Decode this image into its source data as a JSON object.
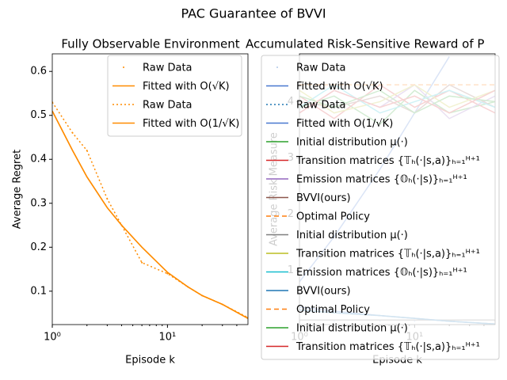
{
  "title": "PAC Guarantee of BVVI",
  "chart_data": [
    {
      "type": "line",
      "title": "Fully Observable Environment",
      "x_label": "Episode k",
      "y_label": "Average Regret",
      "x": [
        1,
        1.5,
        2,
        3,
        4,
        6,
        10,
        15,
        20,
        30,
        50
      ],
      "xlim": [
        1,
        50
      ],
      "log_x": true,
      "xticks": [
        {
          "value": 1,
          "label": "10⁰"
        },
        {
          "value": 10,
          "label": "10¹"
        }
      ],
      "ylim": [
        0.024,
        0.64
      ],
      "yticks": [
        0.1,
        0.2,
        0.3,
        0.4,
        0.5,
        0.6
      ],
      "legend": "upper right",
      "series": [
        {
          "name": "Raw Data",
          "color": "#ff8c00",
          "style": "dots",
          "values": [
            0.53,
            0.46,
            0.42,
            0.31,
            0.25,
            0.165,
            0.14,
            0.11,
            0.09,
            0.07,
            0.04
          ]
        },
        {
          "name": "Fitted with O(√K)",
          "color": "#ff8c00",
          "style": "solid",
          "values": [
            0.51,
            0.42,
            0.36,
            0.29,
            0.25,
            0.2,
            0.143,
            0.11,
            0.09,
            0.07,
            0.038
          ]
        },
        {
          "name": "Raw Data",
          "color": "#ff8c00",
          "style": "dotted",
          "values": [
            0.53,
            0.46,
            0.42,
            0.31,
            0.25,
            0.165,
            0.14,
            0.11,
            0.09,
            0.07,
            0.04
          ]
        },
        {
          "name": "Fitted with O(1/√K)",
          "color": "#ff8c00",
          "style": "solid",
          "values": [
            0.51,
            0.42,
            0.36,
            0.29,
            0.25,
            0.2,
            0.143,
            0.11,
            0.09,
            0.07,
            0.038
          ]
        }
      ]
    },
    {
      "type": "line",
      "title": "Accumulated Risk-Sensitive Reward of P",
      "x_label": "Episode k",
      "y_label": "Average Risk Measure",
      "x": [
        1,
        2,
        5,
        10,
        20,
        50
      ],
      "xlim": [
        1,
        50
      ],
      "log_x": true,
      "xticks": [
        {
          "value": 1,
          "label": "10⁰"
        },
        {
          "value": 10,
          "label": "10¹"
        }
      ],
      "ylim": [
        0.04,
        4.85
      ],
      "yticks": [
        1,
        2,
        3,
        4
      ],
      "legend": "upper left",
      "series": [
        {
          "name": "Raw Data",
          "color": "#aec7e8",
          "style": "dots",
          "values": [
            0.1,
            0.1,
            0.1,
            0.1,
            0.1,
            0.1
          ]
        },
        {
          "name": "Fitted with O(√K)",
          "color": "#4878cf",
          "style": "solid",
          "values": [
            0.8,
            1.6,
            2.8,
            3.8,
            4.8,
            null
          ]
        },
        {
          "name": "Raw Data",
          "color": "#1f77b4",
          "style": "dotted",
          "values": [
            0.3,
            0.25,
            0.2,
            0.15,
            0.1,
            0.05
          ]
        },
        {
          "name": "Fitted with O(1/√K)",
          "color": "#4878cf",
          "style": "solid",
          "values": [
            0.35,
            0.28,
            0.2,
            0.15,
            0.1,
            0.05
          ]
        },
        {
          "name": "Initial distribution μ(·)",
          "color": "#2ca02c",
          "style": "solid",
          "values": [
            3.9,
            4.1,
            3.6,
            4.2,
            3.8,
            4.0
          ]
        },
        {
          "name": "Transition matrices {𝕋ₕ(·|s,a)}ₕ₌₁ᴴ⁺¹",
          "color": "#d62728",
          "style": "solid",
          "values": [
            4.1,
            3.7,
            4.3,
            3.9,
            4.2,
            3.8
          ]
        },
        {
          "name": "Emission matrices {𝕆ₕ(·|s)}ₕ₌₁ᴴ⁺¹",
          "color": "#9467bd",
          "style": "solid",
          "values": [
            3.8,
            4.2,
            3.9,
            4.3,
            3.7,
            4.1
          ]
        },
        {
          "name": "BVVI(ours)",
          "color": "#8c564b",
          "style": "solid",
          "values": [
            4.0,
            3.9,
            4.1,
            3.8,
            4.3,
            3.9
          ]
        },
        {
          "name": "Optimal Policy",
          "color": "#ff7f0e",
          "style": "dashed",
          "values": [
            4.3,
            4.3,
            4.3,
            4.3,
            4.3,
            4.3
          ]
        },
        {
          "name": "Initial distribution μ(·)",
          "color": "#7f7f7f",
          "style": "solid",
          "values": [
            0.12,
            0.12,
            0.12,
            0.12,
            0.12,
            0.12
          ]
        },
        {
          "name": "Transition matrices {𝕋ₕ(·|s,a)}ₕ₌₁ᴴ⁺¹",
          "color": "#bcbd22",
          "style": "solid",
          "values": [
            4.2,
            3.8,
            4.0,
            4.3,
            3.9,
            4.2
          ]
        },
        {
          "name": "Emission matrices {𝕆ₕ(·|s)}ₕ₌₁ᴴ⁺¹",
          "color": "#17becf",
          "style": "solid",
          "values": [
            3.9,
            4.3,
            3.8,
            4.0,
            4.2,
            3.9
          ]
        },
        {
          "name": "BVVI(ours)",
          "color": "#1f77b4",
          "style": "solid",
          "values": [
            0.3,
            0.25,
            0.2,
            0.15,
            0.1,
            0.05
          ]
        },
        {
          "name": "Optimal Policy",
          "color": "#ff7f0e",
          "style": "dashed",
          "values": [
            4.3,
            4.3,
            4.3,
            4.3,
            4.3,
            4.3
          ]
        },
        {
          "name": "Initial distribution μ(·)",
          "color": "#2ca02c",
          "style": "solid",
          "values": [
            4.1,
            3.9,
            4.2,
            3.8,
            4.1,
            4.0
          ]
        },
        {
          "name": "Transition matrices {𝕋ₕ(·|s,a)}ₕ₌₁ᴴ⁺¹",
          "color": "#d62728",
          "style": "solid",
          "values": [
            3.8,
            4.2,
            3.9,
            4.1,
            3.8,
            4.2
          ]
        }
      ]
    }
  ]
}
